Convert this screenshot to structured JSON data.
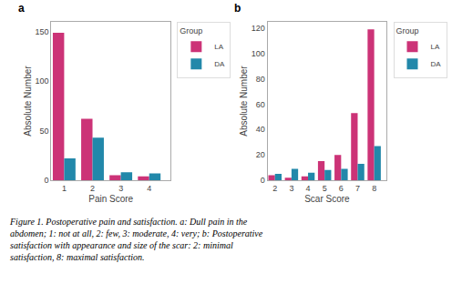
{
  "chart_data": [
    {
      "type": "bar",
      "title": "a",
      "xlabel": "Pain Score",
      "ylabel": "Absolute Number",
      "x": [
        1,
        2,
        3,
        4
      ],
      "series": [
        {
          "name": "LA",
          "color": "#cc3377",
          "values": [
            149,
            62,
            5,
            4
          ]
        },
        {
          "name": "DA",
          "color": "#2288aa",
          "values": [
            22,
            43,
            8,
            7
          ]
        }
      ],
      "xlim": [
        0.55,
        4.75
      ],
      "xticks": [
        1,
        2,
        3,
        4
      ],
      "ylim": [
        0,
        160
      ],
      "yticks": [
        0,
        50,
        100,
        150
      ],
      "grid": false,
      "legend": "right",
      "legend_title": "Group"
    },
    {
      "type": "bar",
      "title": "b",
      "xlabel": "Scar Score",
      "ylabel": "Absolute Number",
      "x": [
        2,
        3,
        4,
        5,
        6,
        7,
        8
      ],
      "series": [
        {
          "name": "LA",
          "color": "#cc3377",
          "values": [
            4,
            2,
            3,
            15,
            20,
            53,
            119
          ]
        },
        {
          "name": "DA",
          "color": "#2288aa",
          "values": [
            5,
            9,
            6,
            8,
            9,
            13,
            27
          ]
        }
      ],
      "xlim": [
        1.55,
        8.75
      ],
      "xticks": [
        2,
        3,
        4,
        5,
        6,
        7,
        8
      ],
      "ylim": [
        0,
        125
      ],
      "yticks": [
        0,
        20,
        40,
        60,
        80,
        100,
        120
      ],
      "grid": false,
      "legend": "right",
      "legend_title": "Group"
    }
  ],
  "caption": [
    "Figure 1. Postoperative pain and satisfaction. a: Dull pain in the",
    "abdomen; 1: not at all, 2: few, 3: moderate, 4: very; b: Postoperative",
    "satisfaction with appearance and size of the scar: 2: minimal",
    "satisfaction, 8: maximal satisfaction."
  ]
}
